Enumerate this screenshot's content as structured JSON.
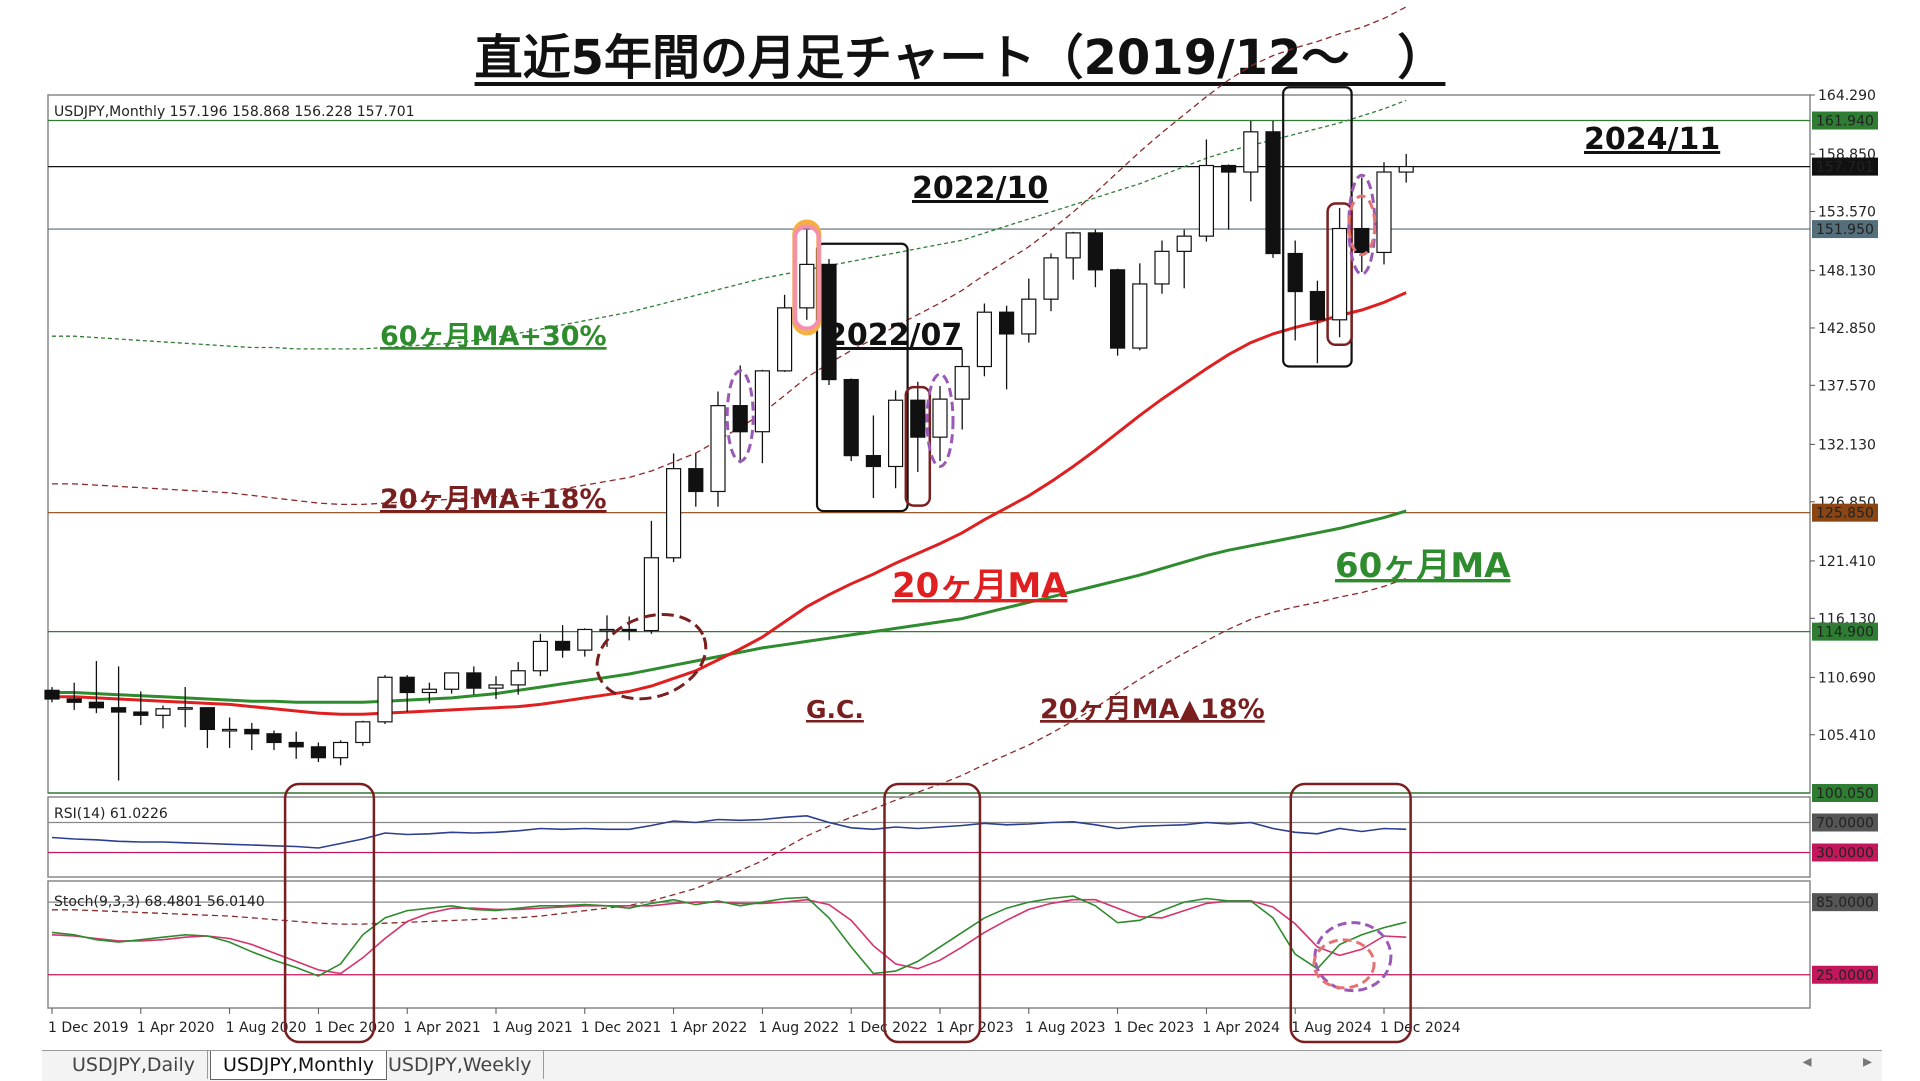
{
  "title": "直近5年間の月足チャート（2019/12～　）",
  "header": {
    "main": "USDJPY,Monthly  157.196 158.868 156.228 157.701",
    "rsi": "RSI(14) 61.0226",
    "stoch": "Stoch(9,3,3) 68.4801 56.0140"
  },
  "tabs": [
    "USDJPY,Daily",
    "USDJPY,Monthly",
    "USDJPY,Weekly"
  ],
  "active_tab": "USDJPY,Monthly",
  "scroll_icons": [
    "◂",
    "▸"
  ],
  "colors": {
    "ma20": "#e02020",
    "ma60": "#2e8b2e",
    "band_red": "#8b2a2a",
    "band_green": "#2e7d32",
    "annotation_red": "#7a1f1f",
    "purple": "#9b59b6",
    "pink": "#f48fb1",
    "orange": "#f5b041",
    "level_brown": "#8b4513"
  },
  "chart_data": [
    {
      "type": "candlestick",
      "symbol": "USDJPY",
      "timeframe": "Monthly",
      "ohlc_header": {
        "open": 157.196,
        "high": 158.868,
        "low": 156.228,
        "close": 157.701
      },
      "ylim": [
        100.05,
        164.29
      ],
      "y_ticks": [
        164.29,
        158.85,
        153.57,
        148.13,
        142.85,
        137.57,
        132.13,
        126.85,
        121.41,
        116.13,
        110.69,
        105.41
      ],
      "x_tick_labels": [
        "1 Dec 2019",
        "1 Apr 2020",
        "1 Aug 2020",
        "1 Dec 2020",
        "1 Apr 2021",
        "1 Aug 2021",
        "1 Dec 2021",
        "1 Apr 2022",
        "1 Aug 2022",
        "1 Dec 2022",
        "1 Apr 2023",
        "1 Aug 2023",
        "1 Dec 2023",
        "1 Apr 2024",
        "1 Aug 2024",
        "1 Dec 2024"
      ],
      "months": [
        "2019-12",
        "2020-01",
        "2020-02",
        "2020-03",
        "2020-04",
        "2020-05",
        "2020-06",
        "2020-07",
        "2020-08",
        "2020-09",
        "2020-10",
        "2020-11",
        "2020-12",
        "2021-01",
        "2021-02",
        "2021-03",
        "2021-04",
        "2021-05",
        "2021-06",
        "2021-07",
        "2021-08",
        "2021-09",
        "2021-10",
        "2021-11",
        "2021-12",
        "2022-01",
        "2022-02",
        "2022-03",
        "2022-04",
        "2022-05",
        "2022-06",
        "2022-07",
        "2022-08",
        "2022-09",
        "2022-10",
        "2022-11",
        "2022-12",
        "2023-01",
        "2023-02",
        "2023-03",
        "2023-04",
        "2023-05",
        "2023-06",
        "2023-07",
        "2023-08",
        "2023-09",
        "2023-10",
        "2023-11",
        "2023-12",
        "2024-01",
        "2024-02",
        "2024-03",
        "2024-04",
        "2024-05",
        "2024-06",
        "2024-07",
        "2024-08",
        "2024-09",
        "2024-10",
        "2024-11",
        "2024-12",
        "2025-01"
      ],
      "candles": [
        [
          109.5,
          109.8,
          108.4,
          108.7
        ],
        [
          108.7,
          110.2,
          107.7,
          108.4
        ],
        [
          108.4,
          112.2,
          107.4,
          107.9
        ],
        [
          107.9,
          111.7,
          101.2,
          107.5
        ],
        [
          107.5,
          109.4,
          106.3,
          107.2
        ],
        [
          107.2,
          108.1,
          106.0,
          107.8
        ],
        [
          107.8,
          109.8,
          106.1,
          107.9
        ],
        [
          107.9,
          107.9,
          104.2,
          105.9
        ],
        [
          105.9,
          107.0,
          104.2,
          105.9
        ],
        [
          105.9,
          106.5,
          104.0,
          105.5
        ],
        [
          105.5,
          105.8,
          104.0,
          104.7
        ],
        [
          104.7,
          105.7,
          103.2,
          104.3
        ],
        [
          104.3,
          104.7,
          102.9,
          103.3
        ],
        [
          103.3,
          104.9,
          102.6,
          104.7
        ],
        [
          104.7,
          106.7,
          104.4,
          106.6
        ],
        [
          106.6,
          110.9,
          106.4,
          110.7
        ],
        [
          110.7,
          110.9,
          107.5,
          109.3
        ],
        [
          109.3,
          110.2,
          108.3,
          109.6
        ],
        [
          109.6,
          111.1,
          109.2,
          111.1
        ],
        [
          111.1,
          111.7,
          109.1,
          109.7
        ],
        [
          109.7,
          110.8,
          108.7,
          110.0
        ],
        [
          110.0,
          112.1,
          109.1,
          111.3
        ],
        [
          111.3,
          114.7,
          110.8,
          114.0
        ],
        [
          114.0,
          115.5,
          112.5,
          113.2
        ],
        [
          113.2,
          115.2,
          112.6,
          115.1
        ],
        [
          115.1,
          116.4,
          113.5,
          115.1
        ],
        [
          115.1,
          116.3,
          114.1,
          115.0
        ],
        [
          115.0,
          125.1,
          114.7,
          121.7
        ],
        [
          121.7,
          131.3,
          121.3,
          129.9
        ],
        [
          129.9,
          131.3,
          126.4,
          127.8
        ],
        [
          127.8,
          137.0,
          126.4,
          135.7
        ],
        [
          135.7,
          139.4,
          130.4,
          133.3
        ],
        [
          133.3,
          139.0,
          130.4,
          138.9
        ],
        [
          138.9,
          145.9,
          138.8,
          144.7
        ],
        [
          144.7,
          151.9,
          143.6,
          148.7
        ],
        [
          148.7,
          149.2,
          137.6,
          138.1
        ],
        [
          138.1,
          138.2,
          130.6,
          131.1
        ],
        [
          131.1,
          134.8,
          127.2,
          130.1
        ],
        [
          130.1,
          137.1,
          128.1,
          136.2
        ],
        [
          136.2,
          137.9,
          129.6,
          132.8
        ],
        [
          132.8,
          137.5,
          130.6,
          136.3
        ],
        [
          136.3,
          140.9,
          133.5,
          139.3
        ],
        [
          139.3,
          145.1,
          138.4,
          144.3
        ],
        [
          144.3,
          144.9,
          137.2,
          142.3
        ],
        [
          142.3,
          147.4,
          141.5,
          145.5
        ],
        [
          145.5,
          149.7,
          144.4,
          149.3
        ],
        [
          149.3,
          151.7,
          147.3,
          151.6
        ],
        [
          151.6,
          151.9,
          146.6,
          148.2
        ],
        [
          148.2,
          148.3,
          140.3,
          141.0
        ],
        [
          141.0,
          148.8,
          140.8,
          146.9
        ],
        [
          146.9,
          150.9,
          146.0,
          149.9
        ],
        [
          149.9,
          151.9,
          146.5,
          151.3
        ],
        [
          151.3,
          160.2,
          150.8,
          157.8
        ],
        [
          157.8,
          157.9,
          151.9,
          157.2
        ],
        [
          157.2,
          161.9,
          154.5,
          160.9
        ],
        [
          160.9,
          161.9,
          149.3,
          149.7
        ],
        [
          149.7,
          150.9,
          141.7,
          146.2
        ],
        [
          146.2,
          147.2,
          139.6,
          143.6
        ],
        [
          143.6,
          153.9,
          142.0,
          152.0
        ],
        [
          152.0,
          156.7,
          148.0,
          149.8
        ],
        [
          149.8,
          158.1,
          148.7,
          157.2
        ],
        [
          157.196,
          158.868,
          156.228,
          157.701
        ]
      ],
      "ma20_values": [
        108.9,
        108.9,
        108.8,
        108.7,
        108.6,
        108.5,
        108.4,
        108.3,
        108.2,
        108.0,
        107.8,
        107.6,
        107.4,
        107.3,
        107.3,
        107.4,
        107.5,
        107.6,
        107.7,
        107.8,
        107.9,
        108.0,
        108.2,
        108.5,
        108.8,
        109.1,
        109.4,
        109.9,
        110.6,
        111.3,
        112.3,
        113.3,
        114.4,
        115.8,
        117.2,
        118.3,
        119.3,
        120.2,
        121.2,
        122.1,
        123.0,
        124.0,
        125.2,
        126.3,
        127.4,
        128.7,
        130.1,
        131.6,
        133.2,
        134.8,
        136.3,
        137.7,
        139.1,
        140.4,
        141.5,
        142.3,
        142.9,
        143.4,
        144.0,
        144.5,
        145.2,
        146.1
      ],
      "ma60_values": [
        109.3,
        109.3,
        109.2,
        109.1,
        109.0,
        108.9,
        108.8,
        108.7,
        108.6,
        108.5,
        108.5,
        108.4,
        108.4,
        108.4,
        108.4,
        108.5,
        108.6,
        108.7,
        108.8,
        109.0,
        109.2,
        109.5,
        109.8,
        110.1,
        110.4,
        110.7,
        111.0,
        111.4,
        111.8,
        112.2,
        112.6,
        113.0,
        113.4,
        113.7,
        114.0,
        114.3,
        114.6,
        114.9,
        115.2,
        115.5,
        115.8,
        116.1,
        116.6,
        117.1,
        117.6,
        118.1,
        118.6,
        119.1,
        119.6,
        120.1,
        120.7,
        121.3,
        121.9,
        122.4,
        122.8,
        123.2,
        123.6,
        124.0,
        124.4,
        124.9,
        125.4,
        126.0
      ],
      "levels": [
        {
          "label": "161.940",
          "value": 161.94,
          "color": "#2e7d32"
        },
        {
          "label": "157.701",
          "value": 157.701,
          "color": "#111111"
        },
        {
          "label": "151.950",
          "value": 151.95,
          "color": "#546e7a"
        },
        {
          "label": "125.850",
          "value": 125.85,
          "color": "#8b4513"
        },
        {
          "label": "114.900",
          "value": 114.9,
          "color": "#2e7d32"
        },
        {
          "label": "100.050",
          "value": 100.05,
          "color": "#2e7d32"
        }
      ],
      "annotations": {
        "ma60_plus30": "60ヶ月MA+30%",
        "ma20_plus18": "20ヶ月MA+18%",
        "ma20": "20ヶ月MA",
        "ma60": "60ヶ月MA",
        "ma20_minus18": "20ヶ月MA▲18%",
        "gc": "G.C.",
        "date_2022_07": "2022/07",
        "date_2022_10": "2022/10",
        "date_2024_11": "2024/11"
      }
    },
    {
      "type": "line",
      "name": "RSI(14)",
      "ylim": [
        0,
        100
      ],
      "level_labels": [
        "70.0000",
        "30.0000"
      ],
      "levels": [
        70,
        30
      ],
      "values": [
        50,
        48,
        47,
        45,
        44,
        44,
        43,
        42,
        41,
        40,
        39,
        38,
        36,
        42,
        48,
        56,
        54,
        55,
        57,
        56,
        57,
        59,
        62,
        61,
        62,
        61,
        61,
        66,
        72,
        70,
        74,
        73,
        74,
        77,
        79,
        70,
        63,
        61,
        64,
        62,
        64,
        66,
        69,
        67,
        68,
        70,
        71,
        67,
        62,
        65,
        66,
        67,
        70,
        68,
        70,
        62,
        57,
        55,
        62,
        58,
        62,
        61
      ]
    },
    {
      "type": "line",
      "name": "Stoch(9,3,3)",
      "ylim": [
        0,
        100
      ],
      "level_labels": [
        "85.0000",
        "25.0000"
      ],
      "levels": [
        85,
        25
      ],
      "series": [
        {
          "values": [
            60,
            58,
            54,
            52,
            54,
            56,
            58,
            57,
            52,
            44,
            37,
            31,
            24,
            34,
            58,
            72,
            78,
            80,
            82,
            79,
            78,
            80,
            82,
            82,
            83,
            82,
            80,
            84,
            87,
            83,
            86,
            82,
            85,
            88,
            89,
            72,
            48,
            26,
            28,
            36,
            48,
            60,
            72,
            80,
            85,
            88,
            90,
            82,
            68,
            70,
            78,
            85,
            88,
            86,
            86,
            72,
            42,
            30,
            50,
            58,
            64,
            68.48
          ]
        },
        {
          "values": [
            58,
            57,
            55,
            53,
            53,
            54,
            56,
            57,
            55,
            50,
            43,
            36,
            29,
            26,
            39,
            55,
            69,
            76,
            80,
            80,
            79,
            79,
            80,
            81,
            82,
            82,
            82,
            82,
            84,
            85,
            85,
            84,
            84,
            85,
            87,
            83,
            70,
            49,
            34,
            30,
            37,
            48,
            60,
            70,
            79,
            84,
            87,
            87,
            80,
            73,
            72,
            78,
            84,
            86,
            86,
            81,
            67,
            48,
            41,
            46,
            57,
            56.01
          ]
        }
      ]
    }
  ]
}
